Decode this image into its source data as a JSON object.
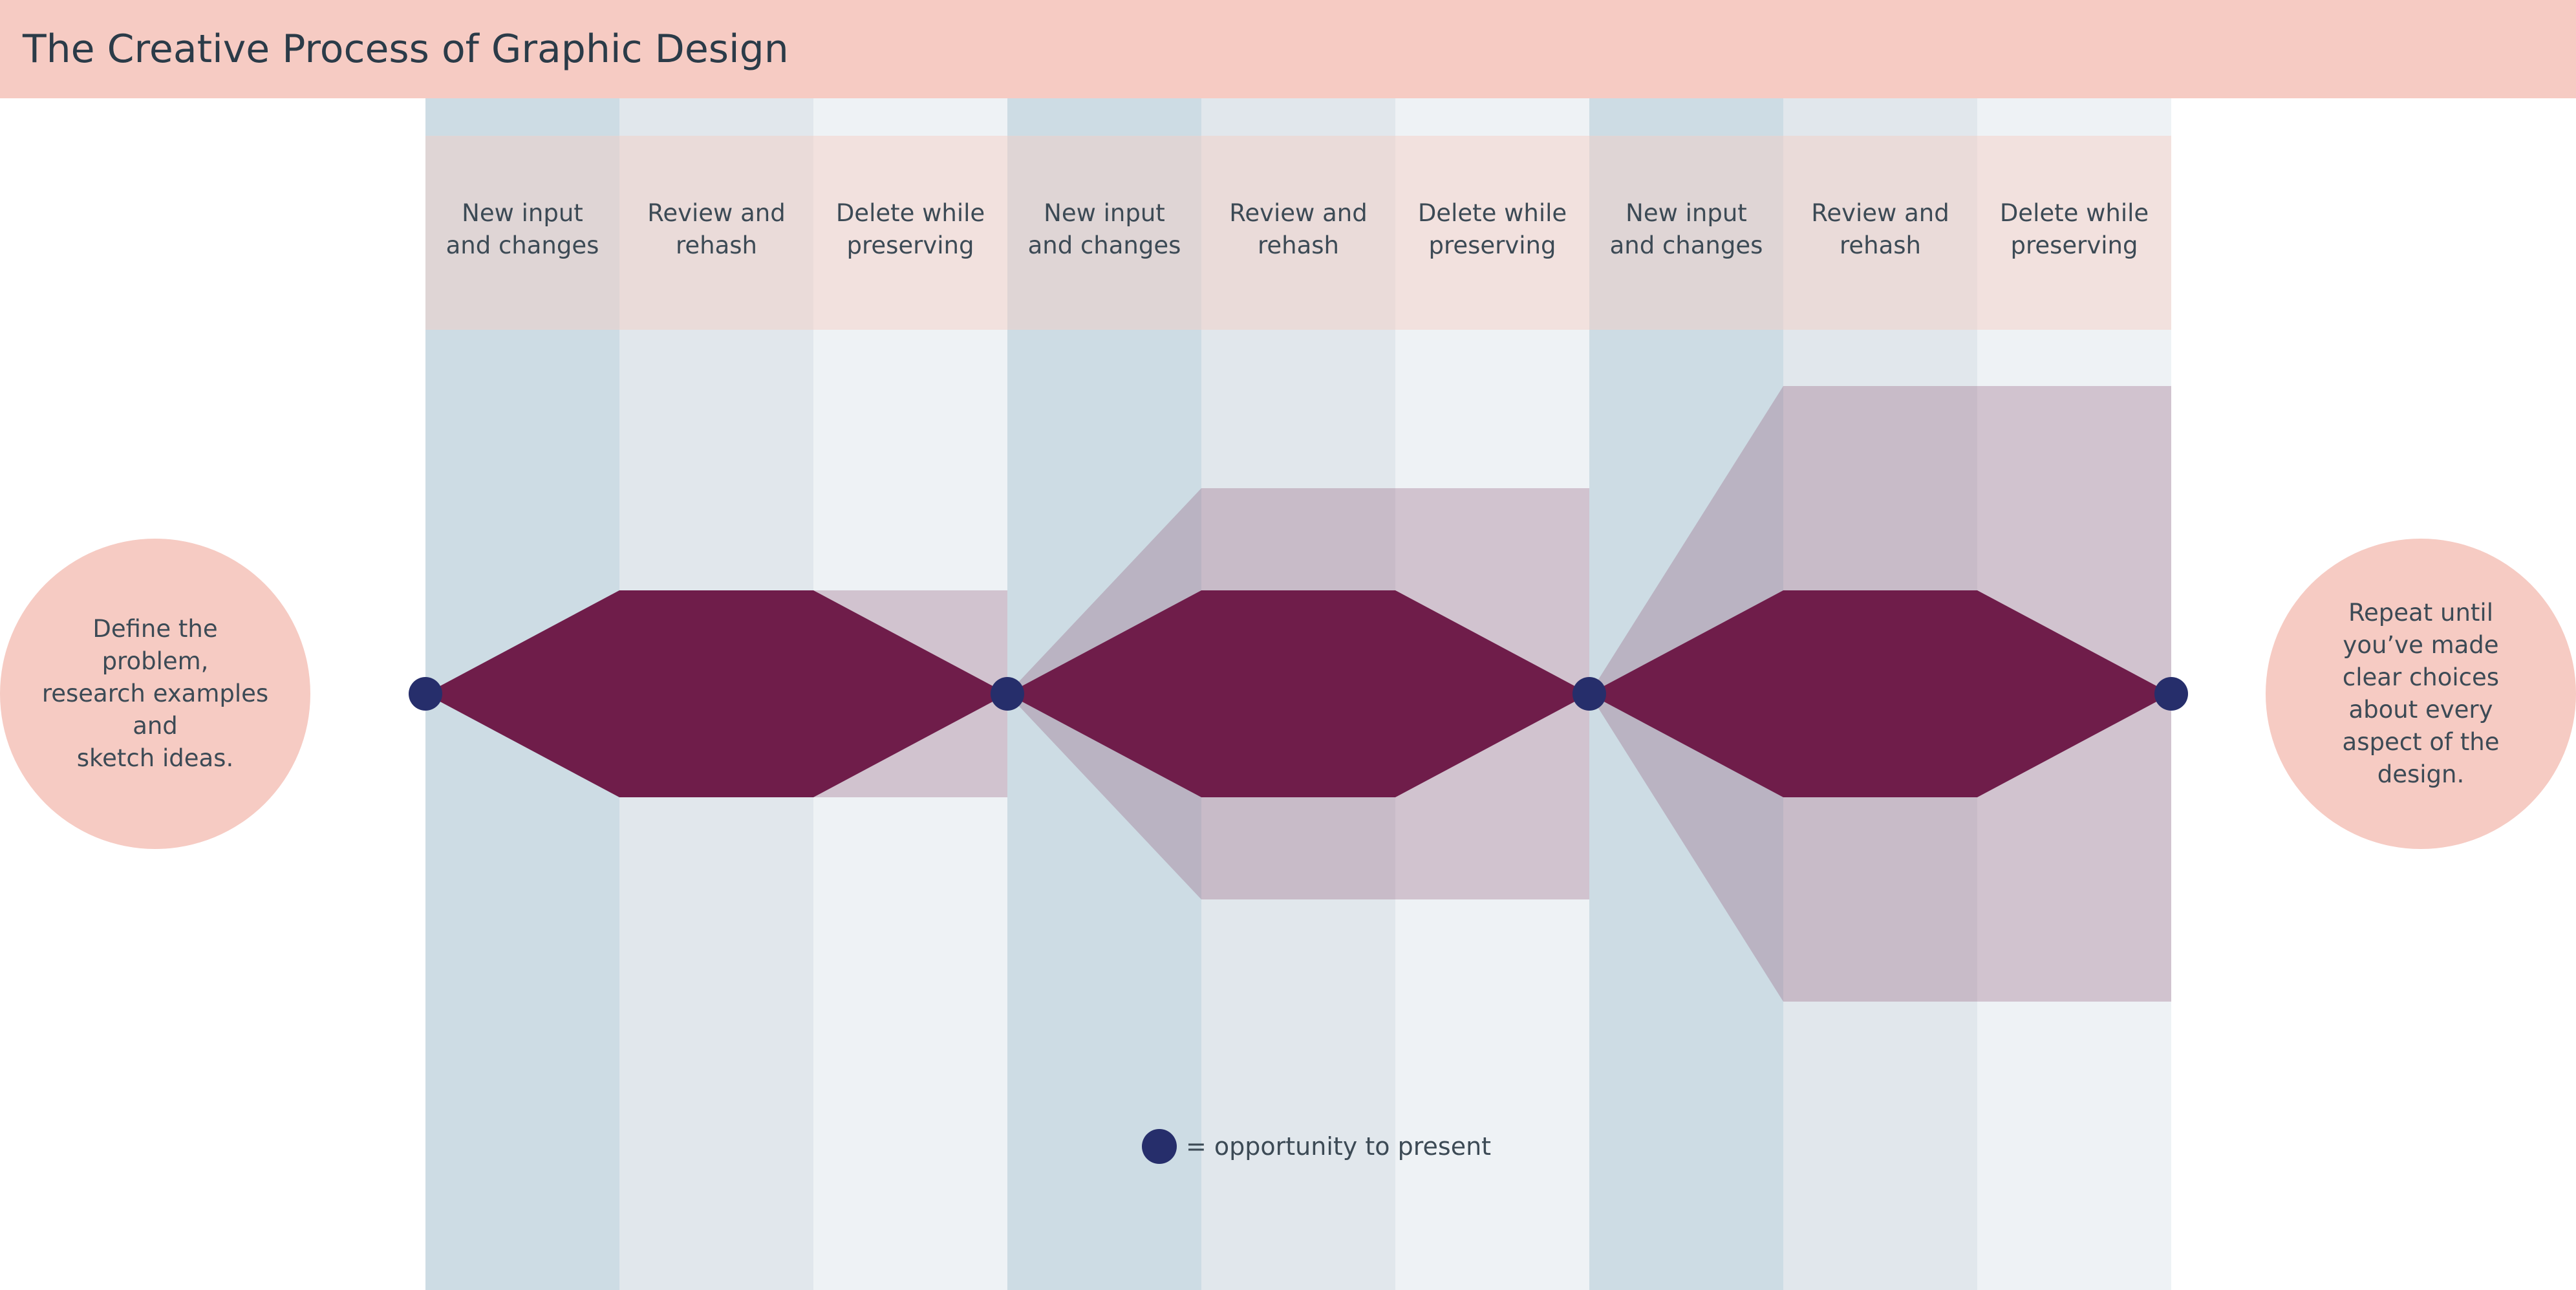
{
  "title": "The Creative Process of Graphic Design",
  "start_node": {
    "text": "Define the\nproblem,\nresearch examples\nand\nsketch ideas."
  },
  "end_node": {
    "text": "Repeat until\nyou’ve made\nclear choices\nabout every\naspect of the\ndesign."
  },
  "columns": [
    {
      "label": "New input\nand changes"
    },
    {
      "label": "Review and\nrehash"
    },
    {
      "label": "Delete while\npreserving"
    },
    {
      "label": "New input\nand changes"
    },
    {
      "label": "Review and\nrehash"
    },
    {
      "label": "Delete while\npreserving"
    },
    {
      "label": "New input\nand changes"
    },
    {
      "label": "Review and\nrehash"
    },
    {
      "label": "Delete while\npreserving"
    }
  ],
  "legend": {
    "text": "= opportunity to present"
  },
  "colors": {
    "header_bg": "#f6cbc3",
    "column_shades": [
      "#cddce4",
      "#e1e7ec",
      "#eef2f5"
    ],
    "label_band": "#f6cbc3",
    "hexagon": "#6f1d4a",
    "envelope": "#8a4a6a",
    "node": "#262e6b",
    "side_circle": "#f6cbc3"
  }
}
